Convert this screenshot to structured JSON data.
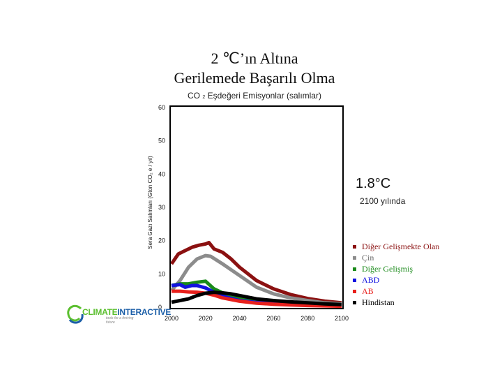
{
  "title": {
    "line1": "2 ℃’ın Altına",
    "line2": "Gerilemede Başarılı Olma"
  },
  "subtitle": {
    "pre": "CO",
    "sub": "2",
    "post": " Eşdeğeri Emisyonlar (salımlar)"
  },
  "annotation": {
    "main": "1.8°C",
    "sub": "2100 yılında"
  },
  "logo": {
    "brand_a": "CLIMATE",
    "brand_b": "INTERACTIVE",
    "tagline": "tools for a thriving future",
    "colors": {
      "a": "#5bbf2f",
      "b": "#1c5fa8"
    }
  },
  "chart_data": {
    "type": "line",
    "ylabel": "Sera Gazı Salımları (Gton CO₂ e / yıl)",
    "xlim": [
      2000,
      2100
    ],
    "ylim": [
      0,
      60
    ],
    "xticks": [
      2000,
      2020,
      2040,
      2060,
      2080,
      2100
    ],
    "yticks": [
      0,
      10,
      20,
      30,
      40,
      50,
      60
    ],
    "grid": false,
    "legend_position": "right",
    "series": [
      {
        "name": "Diğer Gelişmekte Olan",
        "color": "#8b1111",
        "points": [
          [
            2000,
            13
          ],
          [
            2004,
            16
          ],
          [
            2008,
            17
          ],
          [
            2012,
            18
          ],
          [
            2016,
            18.6
          ],
          [
            2020,
            19
          ],
          [
            2022,
            19.4
          ],
          [
            2025,
            17.5
          ],
          [
            2030,
            16.5
          ],
          [
            2035,
            14.5
          ],
          [
            2040,
            12
          ],
          [
            2050,
            8
          ],
          [
            2060,
            5.5
          ],
          [
            2070,
            3.8
          ],
          [
            2080,
            2.6
          ],
          [
            2090,
            1.8
          ],
          [
            2100,
            1.3
          ]
        ]
      },
      {
        "name": "Çin",
        "color": "#8c8c8c",
        "points": [
          [
            2000,
            5
          ],
          [
            2005,
            8
          ],
          [
            2010,
            12
          ],
          [
            2015,
            14.5
          ],
          [
            2020,
            15.5
          ],
          [
            2023,
            15.3
          ],
          [
            2030,
            13
          ],
          [
            2040,
            9.5
          ],
          [
            2050,
            6
          ],
          [
            2060,
            4
          ],
          [
            2070,
            2.8
          ],
          [
            2080,
            2
          ],
          [
            2090,
            1.3
          ],
          [
            2100,
            1
          ]
        ]
      },
      {
        "name": "Diğer Gelişmiş",
        "color": "#1a8a1a",
        "points": [
          [
            2000,
            6.5
          ],
          [
            2005,
            7
          ],
          [
            2010,
            7
          ],
          [
            2015,
            7.5
          ],
          [
            2020,
            7.8
          ],
          [
            2025,
            5.5
          ],
          [
            2030,
            4.3
          ],
          [
            2040,
            2.8
          ],
          [
            2050,
            2
          ],
          [
            2060,
            1.4
          ],
          [
            2070,
            1
          ],
          [
            2080,
            0.8
          ],
          [
            2090,
            0.6
          ],
          [
            2100,
            0.5
          ]
        ]
      },
      {
        "name": "ABD",
        "color": "#1212e0",
        "points": [
          [
            2000,
            6.5
          ],
          [
            2005,
            6.8
          ],
          [
            2008,
            6
          ],
          [
            2012,
            6.5
          ],
          [
            2015,
            6.5
          ],
          [
            2020,
            5.8
          ],
          [
            2025,
            4.5
          ],
          [
            2030,
            3.3
          ],
          [
            2040,
            2
          ],
          [
            2050,
            1.4
          ],
          [
            2060,
            1
          ],
          [
            2070,
            0.8
          ],
          [
            2080,
            0.6
          ],
          [
            2090,
            0.5
          ],
          [
            2100,
            0.4
          ]
        ]
      },
      {
        "name": "AB",
        "color": "#e8201c",
        "points": [
          [
            2000,
            4.8
          ],
          [
            2005,
            4.8
          ],
          [
            2010,
            4.6
          ],
          [
            2015,
            4.5
          ],
          [
            2020,
            4.2
          ],
          [
            2025,
            3.6
          ],
          [
            2030,
            2.8
          ],
          [
            2040,
            1.8
          ],
          [
            2050,
            1.2
          ],
          [
            2060,
            0.9
          ],
          [
            2070,
            0.7
          ],
          [
            2080,
            0.5
          ],
          [
            2090,
            0.4
          ],
          [
            2100,
            0.3
          ]
        ]
      },
      {
        "name": "Hindistan",
        "color": "#000000",
        "points": [
          [
            2000,
            1.5
          ],
          [
            2005,
            2
          ],
          [
            2010,
            2.5
          ],
          [
            2015,
            3.5
          ],
          [
            2020,
            4.2
          ],
          [
            2025,
            4.5
          ],
          [
            2030,
            4.3
          ],
          [
            2035,
            4
          ],
          [
            2040,
            3.5
          ],
          [
            2050,
            2.5
          ],
          [
            2060,
            2
          ],
          [
            2070,
            1.6
          ],
          [
            2080,
            1.3
          ],
          [
            2090,
            1
          ],
          [
            2100,
            0.8
          ]
        ]
      }
    ]
  }
}
